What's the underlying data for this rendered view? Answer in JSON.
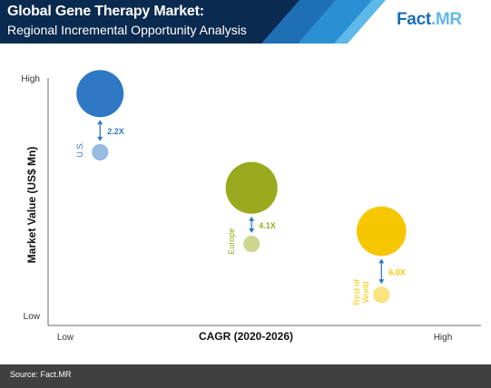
{
  "header": {
    "title": "Global Gene Therapy Market:",
    "subtitle": "Regional Incremental Opportunity Analysis",
    "logo_left": "Fact",
    "logo_right": ".MR",
    "colors": {
      "navy": "#0b2a4f",
      "blue": "#1f6fb5",
      "light_blue": "#5eb8e8",
      "logo_fact": "#1a6fb5",
      "logo_mr": "#62b9e8"
    }
  },
  "footer": {
    "source": "Source: Fact.MR"
  },
  "chart_data": {
    "type": "bubble",
    "title": "Global Gene Therapy Market: Regional Incremental Opportunity Analysis",
    "xlabel": "CAGR (2020-2026)",
    "ylabel": "Market Value (US$ Mn)",
    "x_ticks": [
      "Low",
      "High"
    ],
    "y_ticks": [
      "Low",
      "High"
    ],
    "grid": false,
    "legend": "none",
    "xlim": [
      0,
      1
    ],
    "ylim": [
      0,
      1
    ],
    "series": [
      {
        "name": "U.S.",
        "color": "#2f78c4",
        "multiplier": "2.2X",
        "current": {
          "x": 0.12,
          "y": 0.68,
          "size": 0.35
        },
        "future": {
          "x": 0.12,
          "y": 0.91,
          "size": 1.0
        }
      },
      {
        "name": "Europe",
        "color": "#9aaa1f",
        "multiplier": "4.1X",
        "current": {
          "x": 0.47,
          "y": 0.32,
          "size": 0.35
        },
        "future": {
          "x": 0.47,
          "y": 0.54,
          "size": 1.1
        }
      },
      {
        "name": "Rest of World",
        "name_lines": [
          "Rest of",
          "World"
        ],
        "color": "#f6c700",
        "multiplier": "6.0X",
        "current": {
          "x": 0.77,
          "y": 0.12,
          "size": 0.35
        },
        "future": {
          "x": 0.77,
          "y": 0.37,
          "size": 1.05
        }
      }
    ]
  }
}
